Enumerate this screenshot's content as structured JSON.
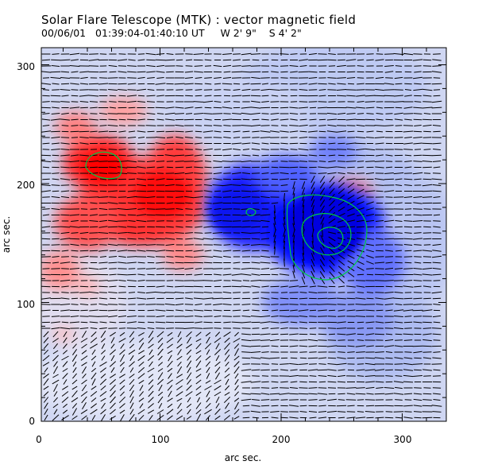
{
  "title": "Solar Flare Telescope (MTK) : vector magnetic field",
  "subtitle": "00/06/01   01:39:04-01:40:10 UT     W 2' 9\"    S 4' 2\"",
  "xaxis": {
    "label": "arc sec.",
    "ticks": [
      "0",
      "100",
      "200",
      "300"
    ]
  },
  "yaxis": {
    "label": "arc sec.",
    "ticks": [
      "0",
      "100",
      "200",
      "300"
    ]
  },
  "colors": {
    "positive": "#ff2020",
    "negative": "#1020ff",
    "contour": "#00cc44",
    "vector": "#000000"
  }
}
